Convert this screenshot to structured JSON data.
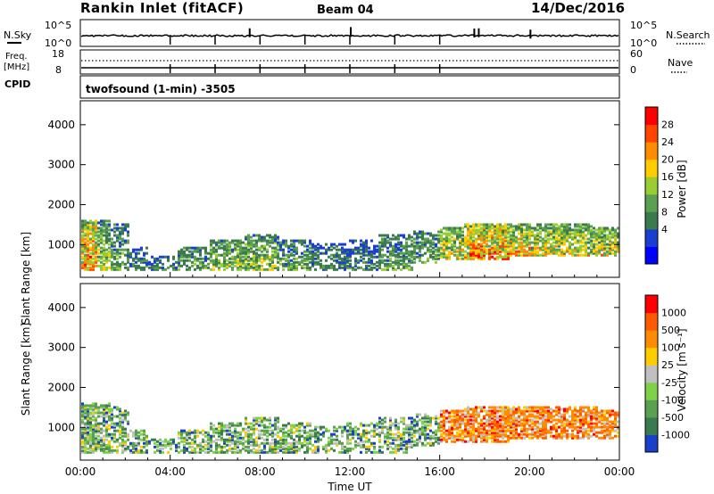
{
  "header": {
    "station": "Rankin Inlet (fitACF)",
    "beam": "Beam 04",
    "date": "14/Dec/2016"
  },
  "strip_panels": {
    "nsky": {
      "label": "N.Sky",
      "tick_top": "10^5",
      "tick_bottom": "10^0",
      "right_label": "N.Search",
      "right_tick_top": "10^5",
      "right_tick_bottom": "10^0"
    },
    "freq": {
      "label_line1": "Freq.",
      "label_line2": "[MHz]",
      "tick_top": "18",
      "tick_bottom": "8",
      "right_label": "Nave",
      "right_tick_top": "60",
      "right_tick_bottom": "0"
    },
    "cpid": {
      "label": "CPID",
      "value": "twofsound (1-min) -3505"
    }
  },
  "chart_data": [
    {
      "type": "heatmap",
      "name": "power",
      "xlabel": "",
      "ylabel": "Slant Range [km]",
      "x_range": [
        "00:00",
        "24:00"
      ],
      "ylim": [
        180,
        4600
      ],
      "yticks": [
        1000,
        2000,
        3000,
        4000
      ],
      "colorbar": {
        "label": "Power [dB]",
        "ticks": [
          "28",
          "24",
          "20",
          "16",
          "12",
          "8",
          "4"
        ],
        "colors": [
          "#0000ff",
          "#1a3fd0",
          "#3b7a4f",
          "#5aa050",
          "#9acd32",
          "#ffcc00",
          "#ff8c00",
          "#ff4500",
          "#ff0000"
        ]
      },
      "activity_hours": [
        {
          "h": 0.3,
          "lo": 300,
          "hi": 1600,
          "level": 8
        },
        {
          "h": 1.0,
          "lo": 300,
          "hi": 1600,
          "level": 5
        },
        {
          "h": 1.7,
          "lo": 300,
          "hi": 1500,
          "level": 4
        },
        {
          "h": 2.5,
          "lo": 300,
          "hi": 900,
          "level": 3
        },
        {
          "h": 3.5,
          "lo": 300,
          "hi": 700,
          "level": 3
        },
        {
          "h": 5.0,
          "lo": 300,
          "hi": 900,
          "level": 4
        },
        {
          "h": 6.5,
          "lo": 300,
          "hi": 1100,
          "level": 5
        },
        {
          "h": 8.0,
          "lo": 300,
          "hi": 1200,
          "level": 5
        },
        {
          "h": 9.5,
          "lo": 300,
          "hi": 1100,
          "level": 4
        },
        {
          "h": 11.0,
          "lo": 300,
          "hi": 1000,
          "level": 3
        },
        {
          "h": 12.5,
          "lo": 300,
          "hi": 1100,
          "level": 3
        },
        {
          "h": 14.0,
          "lo": 300,
          "hi": 1200,
          "level": 4
        },
        {
          "h": 15.5,
          "lo": 500,
          "hi": 1300,
          "level": 4
        },
        {
          "h": 16.5,
          "lo": 600,
          "hi": 1400,
          "level": 6
        },
        {
          "h": 17.5,
          "lo": 600,
          "hi": 1500,
          "level": 8
        },
        {
          "h": 18.5,
          "lo": 600,
          "hi": 1500,
          "level": 8
        },
        {
          "h": 19.5,
          "lo": 700,
          "hi": 1500,
          "level": 7
        },
        {
          "h": 20.5,
          "lo": 700,
          "hi": 1500,
          "level": 6
        },
        {
          "h": 21.5,
          "lo": 700,
          "hi": 1500,
          "level": 6
        },
        {
          "h": 22.5,
          "lo": 700,
          "hi": 1500,
          "level": 6
        },
        {
          "h": 23.5,
          "lo": 700,
          "hi": 1400,
          "level": 6
        }
      ]
    },
    {
      "type": "heatmap",
      "name": "velocity",
      "xlabel": "Time UT",
      "ylabel": "Slant Range [km]",
      "x_range": [
        "00:00",
        "24:00"
      ],
      "xticks": [
        "00:00",
        "04:00",
        "08:00",
        "12:00",
        "16:00",
        "20:00",
        "00:00"
      ],
      "ylim": [
        180,
        4600
      ],
      "yticks": [
        1000,
        2000,
        3000,
        4000
      ],
      "colorbar": {
        "label": "Velocity [m s⁻¹]",
        "ticks": [
          "1000",
          "500",
          "100",
          "25",
          "-25",
          "-100",
          "-500",
          "-1000"
        ],
        "colors": [
          "#1a3fc8",
          "#3b7a4f",
          "#5aa050",
          "#7fd14a",
          "#c0c0c0",
          "#ffcc00",
          "#ff8c00",
          "#ff5a00",
          "#ff0000"
        ]
      }
    }
  ],
  "colors": {
    "frame": "#000000",
    "background": "#ffffff"
  }
}
